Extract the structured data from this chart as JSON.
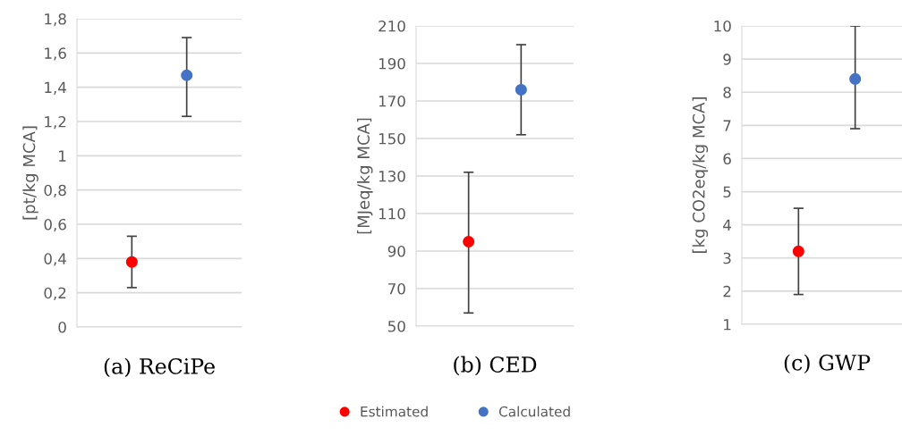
{
  "chart_data": [
    {
      "type": "scatter",
      "title": "(a) ReCiPe",
      "ylabel": "[pt/kg MCA]",
      "categories": [
        null,
        null
      ],
      "grid": "y",
      "marker": "circle",
      "legend": "bottom",
      "series": [
        {
          "name": "Estimated",
          "color": "#ff0000",
          "values": [
            0.38,
            null
          ],
          "errors": [
            [
              0.23,
              0.53
            ],
            null
          ]
        },
        {
          "name": "Calculated",
          "color": "#4472c4",
          "values": [
            null,
            1.47
          ],
          "errors": [
            null,
            [
              1.23,
              1.69
            ]
          ]
        }
      ],
      "ylim": [
        0,
        1.8
      ],
      "yticks": [
        0,
        {
          "value": 0.2,
          "label": "0,2"
        },
        {
          "value": 0.4,
          "label": "0,4"
        },
        {
          "value": 0.6,
          "label": "0,6"
        },
        {
          "value": 0.8,
          "label": "0,8"
        },
        1,
        {
          "value": 1.2,
          "label": "1,2"
        },
        {
          "value": 1.4,
          "label": "1,4"
        },
        {
          "value": 1.6,
          "label": "1,6"
        },
        {
          "value": 1.8,
          "label": "1,8"
        }
      ]
    },
    {
      "type": "scatter",
      "title": "(b) CED",
      "ylabel": "[MJeq/kg MCA]",
      "categories": [
        null,
        null
      ],
      "grid": "y",
      "marker": "circle",
      "series": [
        {
          "color": "#ff0000",
          "values": [
            95,
            null
          ],
          "errors": [
            [
              57,
              132
            ],
            null
          ]
        },
        {
          "color": "#4472c4",
          "values": [
            null,
            176
          ],
          "errors": [
            null,
            [
              152,
              200
            ]
          ]
        }
      ],
      "ylim": [
        50,
        210
      ],
      "yticks": [
        50,
        70,
        90,
        110,
        130,
        150,
        170,
        190,
        210
      ]
    },
    {
      "type": "scatter",
      "title": "(c) GWP",
      "ylabel": "[kg CO2eq/kg MCA]",
      "categories": [
        null,
        null
      ],
      "grid": "y",
      "marker": "circle",
      "series": [
        {
          "color": "#ff0000",
          "values": [
            3.2,
            null
          ],
          "errors": [
            [
              1.9,
              4.5
            ],
            null
          ]
        },
        {
          "color": "#4472c4",
          "values": [
            null,
            8.4
          ],
          "errors": [
            null,
            [
              6.9,
              10
            ]
          ]
        }
      ],
      "ylim": [
        1,
        10
      ],
      "yticks": [
        1,
        2,
        3,
        4,
        5,
        6,
        7,
        8,
        9,
        10
      ]
    }
  ]
}
